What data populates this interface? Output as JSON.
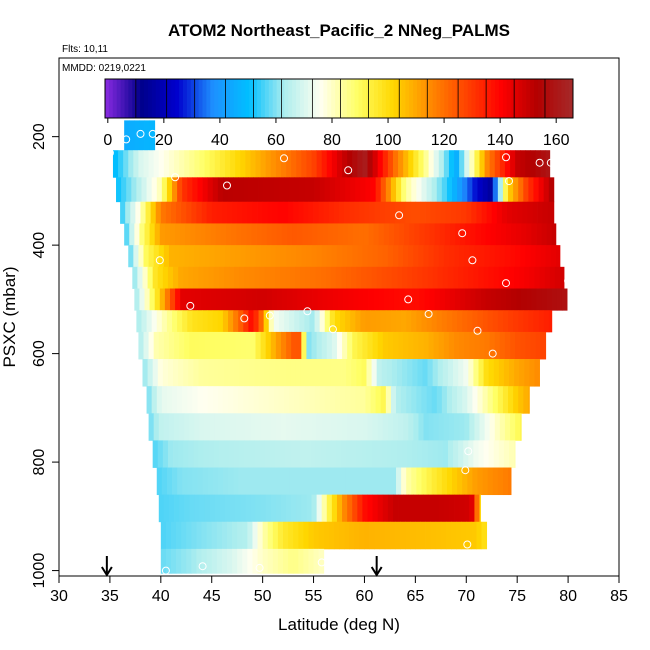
{
  "chart_data": {
    "type": "heatmap",
    "title": "ATOM2 Northeast_Pacific_2 NNeg_PALMS",
    "flights_label": "Flts: 10,11",
    "dates_label": "MMDD: 0219,0221",
    "xlabel": "Latitude (deg N)",
    "ylabel": "PSXC (mbar)",
    "xlim": [
      30,
      85
    ],
    "ylim": [
      1010,
      55
    ],
    "x_ticks": [
      30,
      35,
      40,
      45,
      50,
      55,
      60,
      65,
      70,
      75,
      80,
      85
    ],
    "y_ticks": [
      200,
      400,
      600,
      800,
      1000
    ],
    "colorbar": {
      "range": [
        -1,
        166
      ],
      "ticks": [
        0,
        20,
        40,
        60,
        80,
        100,
        120,
        140,
        160
      ],
      "colors": [
        "#8a2be2",
        "#00008b",
        "#0000cd",
        "#1e90ff",
        "#00bfff",
        "#afeeee",
        "#fffff0",
        "#ffff66",
        "#ffd700",
        "#ff8c00",
        "#ff4500",
        "#ff0000",
        "#b30000",
        "#a52a2a"
      ],
      "divider_values": [
        10,
        21,
        31,
        42,
        52,
        62,
        73,
        83,
        93,
        104,
        114,
        125,
        135,
        145,
        156
      ]
    },
    "bands": [
      {
        "p": [
          170,
          225
        ],
        "lat": [
          36.4,
          39.4
        ],
        "segments": [
          [
            36.4,
            45
          ],
          [
            39.4,
            48
          ]
        ]
      },
      {
        "p": [
          225,
          275
        ],
        "lat": [
          35.3,
          78.2
        ],
        "segments": [
          [
            35.3,
            48
          ],
          [
            38,
            70
          ],
          [
            44,
            88
          ],
          [
            50,
            110
          ],
          [
            55,
            128
          ],
          [
            58,
            150
          ],
          [
            60,
            162
          ],
          [
            63,
            120
          ],
          [
            66,
            85
          ],
          [
            69,
            45
          ],
          [
            72,
            115
          ],
          [
            75,
            150
          ],
          [
            77,
            155
          ],
          [
            78.2,
            160
          ]
        ]
      },
      {
        "p": [
          275,
          320
        ],
        "lat": [
          35.6,
          78.6
        ],
        "segments": [
          [
            35.6,
            50
          ],
          [
            38,
            66
          ],
          [
            40,
            82
          ],
          [
            42,
            130
          ],
          [
            46,
            152
          ],
          [
            55,
            150
          ],
          [
            61,
            140
          ],
          [
            64,
            85
          ],
          [
            68,
            55
          ],
          [
            71,
            25
          ],
          [
            72.5,
            15
          ],
          [
            74,
            100
          ],
          [
            76,
            130
          ],
          [
            78.6,
            155
          ]
        ]
      },
      {
        "p": [
          320,
          360
        ],
        "lat": [
          36,
          78.6
        ],
        "segments": [
          [
            36,
            52
          ],
          [
            38,
            80
          ],
          [
            40,
            118
          ],
          [
            45,
            135
          ],
          [
            52,
            140
          ],
          [
            58,
            132
          ],
          [
            65,
            126
          ],
          [
            70,
            130
          ],
          [
            74,
            145
          ],
          [
            78.6,
            150
          ]
        ]
      },
      {
        "p": [
          360,
          400
        ],
        "lat": [
          36.4,
          78.8
        ],
        "segments": [
          [
            36.4,
            52
          ],
          [
            38,
            85
          ],
          [
            40,
            112
          ],
          [
            46,
            118
          ],
          [
            53,
            124
          ],
          [
            60,
            120
          ],
          [
            66,
            130
          ],
          [
            72,
            140
          ],
          [
            76,
            145
          ],
          [
            78.8,
            150
          ]
        ]
      },
      {
        "p": [
          400,
          440
        ],
        "lat": [
          36.8,
          79.2
        ],
        "segments": [
          [
            36.8,
            54
          ],
          [
            38.5,
            90
          ],
          [
            41,
            108
          ],
          [
            48,
            112
          ],
          [
            55,
            116
          ],
          [
            62,
            122
          ],
          [
            68,
            132
          ],
          [
            74,
            138
          ],
          [
            79.2,
            145
          ]
        ]
      },
      {
        "p": [
          440,
          480
        ],
        "lat": [
          37.2,
          79.6
        ],
        "segments": [
          [
            37.2,
            58
          ],
          [
            39.5,
            98
          ],
          [
            42,
            110
          ],
          [
            48,
            115
          ],
          [
            56,
            120
          ],
          [
            64,
            128
          ],
          [
            70,
            135
          ],
          [
            76,
            142
          ],
          [
            79.6,
            148
          ]
        ]
      },
      {
        "p": [
          480,
          520
        ],
        "lat": [
          37.4,
          79.9
        ],
        "segments": [
          [
            37.4,
            60
          ],
          [
            39.5,
            95
          ],
          [
            42,
            145
          ],
          [
            50,
            148
          ],
          [
            58,
            142
          ],
          [
            65,
            138
          ],
          [
            72,
            150
          ],
          [
            77,
            155
          ],
          [
            79.9,
            158
          ]
        ]
      },
      {
        "p": [
          520,
          560
        ],
        "lat": [
          37.6,
          78.4
        ],
        "segments": [
          [
            37.6,
            62
          ],
          [
            40,
            80
          ],
          [
            43,
            98
          ],
          [
            46,
            102
          ],
          [
            48,
            125
          ],
          [
            49,
            140
          ],
          [
            50,
            118
          ],
          [
            51,
            75
          ],
          [
            55,
            62
          ],
          [
            57,
            100
          ],
          [
            60,
            112
          ],
          [
            64,
            110
          ],
          [
            68,
            118
          ],
          [
            72,
            125
          ],
          [
            75,
            130
          ],
          [
            78.4,
            135
          ]
        ]
      },
      {
        "p": [
          560,
          610
        ],
        "lat": [
          37.8,
          77.8
        ],
        "segments": [
          [
            37.8,
            62
          ],
          [
            39.5,
            82
          ],
          [
            43,
            90
          ],
          [
            49,
            88
          ],
          [
            51.5,
            112
          ],
          [
            53.5,
            128
          ],
          [
            54.5,
            60
          ],
          [
            57,
            70
          ],
          [
            59,
            92
          ],
          [
            62,
            104
          ],
          [
            66,
            108
          ],
          [
            69,
            115
          ],
          [
            72,
            118
          ],
          [
            75,
            125
          ],
          [
            77.8,
            128
          ]
        ]
      },
      {
        "p": [
          610,
          660
        ],
        "lat": [
          38.2,
          77.2
        ],
        "segments": [
          [
            38.2,
            60
          ],
          [
            40,
            78
          ],
          [
            44,
            84
          ],
          [
            52,
            86
          ],
          [
            58,
            86
          ],
          [
            60,
            90
          ],
          [
            61.5,
            65
          ],
          [
            66,
            58
          ],
          [
            70,
            74
          ],
          [
            72,
            100
          ],
          [
            75,
            110
          ],
          [
            77.2,
            115
          ]
        ]
      },
      {
        "p": [
          660,
          710
        ],
        "lat": [
          38.6,
          76.2
        ],
        "segments": [
          [
            38.6,
            58
          ],
          [
            40,
            72
          ],
          [
            44,
            76
          ],
          [
            52,
            80
          ],
          [
            60,
            84
          ],
          [
            62,
            92
          ],
          [
            63,
            64
          ],
          [
            67,
            58
          ],
          [
            70,
            70
          ],
          [
            73,
            90
          ],
          [
            75,
            104
          ],
          [
            76.2,
            110
          ]
        ]
      },
      {
        "p": [
          710,
          760
        ],
        "lat": [
          38.8,
          75.4
        ],
        "segments": [
          [
            38.8,
            58
          ],
          [
            40,
            66
          ],
          [
            44,
            70
          ],
          [
            52,
            72
          ],
          [
            60,
            70
          ],
          [
            64,
            66
          ],
          [
            66,
            60
          ],
          [
            70,
            62
          ],
          [
            73,
            80
          ],
          [
            75.4,
            92
          ]
        ]
      },
      {
        "p": [
          760,
          810
        ],
        "lat": [
          39.2,
          74.8
        ],
        "segments": [
          [
            39.2,
            56
          ],
          [
            41,
            62
          ],
          [
            46,
            64
          ],
          [
            54,
            66
          ],
          [
            62,
            64
          ],
          [
            68,
            62
          ],
          [
            71,
            74
          ],
          [
            74.8,
            82
          ]
        ]
      },
      {
        "p": [
          810,
          860
        ],
        "lat": [
          39.6,
          74.4
        ],
        "segments": [
          [
            39.6,
            56
          ],
          [
            42,
            60
          ],
          [
            48,
            62
          ],
          [
            56,
            62
          ],
          [
            63,
            62
          ],
          [
            64,
            82
          ],
          [
            67,
            96
          ],
          [
            71,
            112
          ],
          [
            74.4,
            118
          ]
        ]
      },
      {
        "p": [
          860,
          910
        ],
        "lat": [
          39.8,
          71.4
        ],
        "segments": [
          [
            39.8,
            56
          ],
          [
            43,
            58
          ],
          [
            50,
            60
          ],
          [
            55,
            62
          ],
          [
            56.5,
            92
          ],
          [
            58,
            115
          ],
          [
            60,
            138
          ],
          [
            63,
            150
          ],
          [
            67,
            150
          ],
          [
            70.5,
            148
          ],
          [
            71.4,
            102
          ]
        ]
      },
      {
        "p": [
          910,
          960
        ],
        "lat": [
          40,
          72
        ],
        "segments": [
          [
            40,
            56
          ],
          [
            44,
            60
          ],
          [
            48.5,
            64
          ],
          [
            50,
            82
          ],
          [
            52,
            96
          ],
          [
            55,
            104
          ],
          [
            60,
            108
          ],
          [
            66,
            106
          ],
          [
            71,
            104
          ],
          [
            72,
            98
          ]
        ]
      },
      {
        "p": [
          960,
          1005
        ],
        "lat": [
          40,
          56
        ],
        "segments": [
          [
            40,
            58
          ],
          [
            43,
            62
          ],
          [
            47,
            70
          ],
          [
            50,
            80
          ],
          [
            53,
            86
          ],
          [
            56,
            80
          ]
        ]
      }
    ],
    "points": [
      [
        35,
        230
      ],
      [
        36.6,
        205
      ],
      [
        38,
        195
      ],
      [
        39.2,
        195
      ],
      [
        41.4,
        275
      ],
      [
        46.5,
        290
      ],
      [
        52.1,
        240
      ],
      [
        58.4,
        262
      ],
      [
        63.4,
        345
      ],
      [
        67.8,
        218
      ],
      [
        69.6,
        378
      ],
      [
        70.6,
        428
      ],
      [
        73.9,
        238
      ],
      [
        74.2,
        282
      ],
      [
        77.2,
        248
      ],
      [
        78.3,
        248
      ],
      [
        39.9,
        428
      ],
      [
        73.9,
        470
      ],
      [
        80,
        466
      ],
      [
        42.9,
        512
      ],
      [
        48.2,
        535
      ],
      [
        50.7,
        530
      ],
      [
        54.4,
        522
      ],
      [
        56.9,
        555
      ],
      [
        64.3,
        500
      ],
      [
        66.3,
        527
      ],
      [
        71.1,
        558
      ],
      [
        72.6,
        600
      ],
      [
        70.2,
        780
      ],
      [
        69.9,
        815
      ],
      [
        70.1,
        952
      ],
      [
        40.5,
        1000
      ],
      [
        44.1,
        992
      ],
      [
        49.7,
        995
      ],
      [
        55.8,
        985
      ]
    ],
    "arrows": [
      34.7,
      61.2
    ]
  }
}
